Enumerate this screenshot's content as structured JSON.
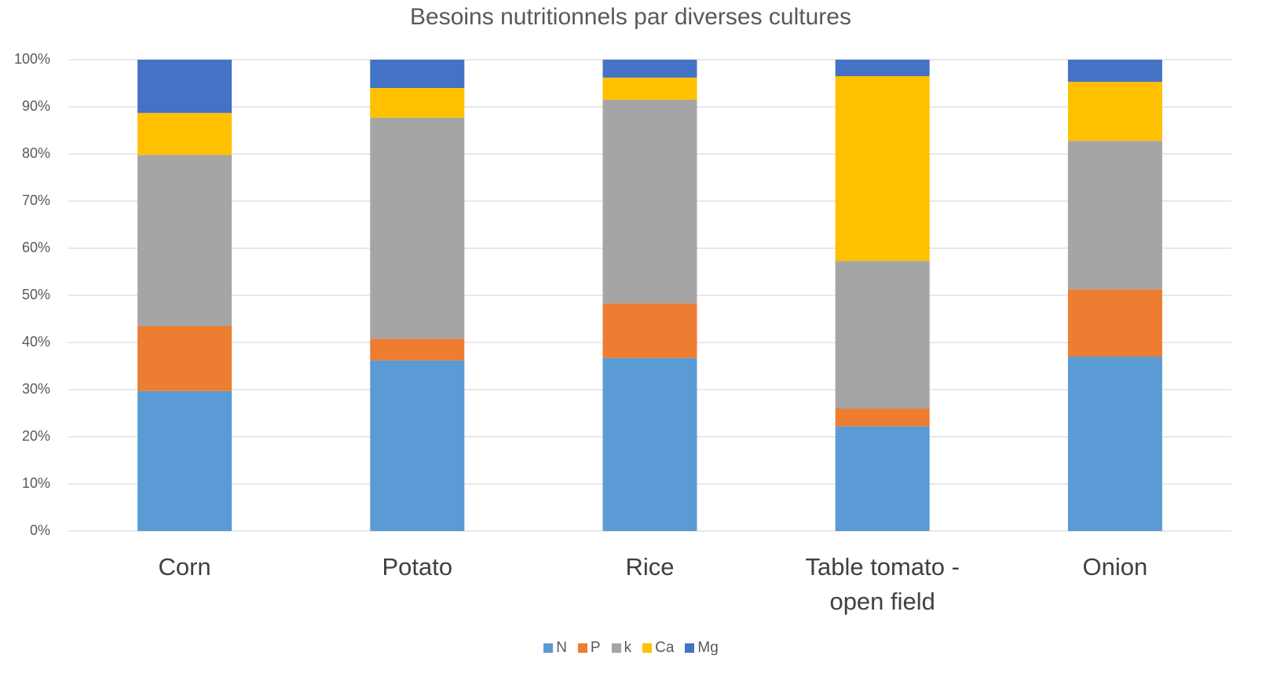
{
  "chart_data": {
    "type": "stacked_bar_100",
    "title": "Besoins nutritionnels par diverses cultures",
    "categories": [
      "Corn",
      "Potato",
      "Rice",
      "Table tomato - open field",
      "Onion"
    ],
    "series": [
      {
        "name": "N",
        "color": "#5b9bd5",
        "values": [
          29.7,
          36.2,
          36.7,
          22.2,
          37.0
        ]
      },
      {
        "name": "P",
        "color": "#ed7d31",
        "values": [
          13.8,
          4.6,
          11.6,
          3.8,
          14.3
        ]
      },
      {
        "name": "k",
        "color": "#a5a5a5",
        "values": [
          36.3,
          46.9,
          43.2,
          31.3,
          31.5
        ]
      },
      {
        "name": "Ca",
        "color": "#ffc000",
        "values": [
          8.9,
          6.3,
          4.7,
          39.2,
          12.5
        ]
      },
      {
        "name": "Mg",
        "color": "#4472c4",
        "values": [
          11.3,
          6.0,
          3.8,
          3.5,
          4.7
        ]
      }
    ],
    "ylim": [
      0,
      100
    ],
    "yticks": [
      {
        "value": 0,
        "label": "0%"
      },
      {
        "value": 10,
        "label": "10%"
      },
      {
        "value": 20,
        "label": "20%"
      },
      {
        "value": 30,
        "label": "30%"
      },
      {
        "value": 40,
        "label": "40%"
      },
      {
        "value": 50,
        "label": "50%"
      },
      {
        "value": 60,
        "label": "60%"
      },
      {
        "value": 70,
        "label": "70%"
      },
      {
        "value": 80,
        "label": "80%"
      },
      {
        "value": 90,
        "label": "90%"
      },
      {
        "value": 100,
        "label": "100%"
      }
    ],
    "grid": true,
    "legend": "bottom"
  }
}
